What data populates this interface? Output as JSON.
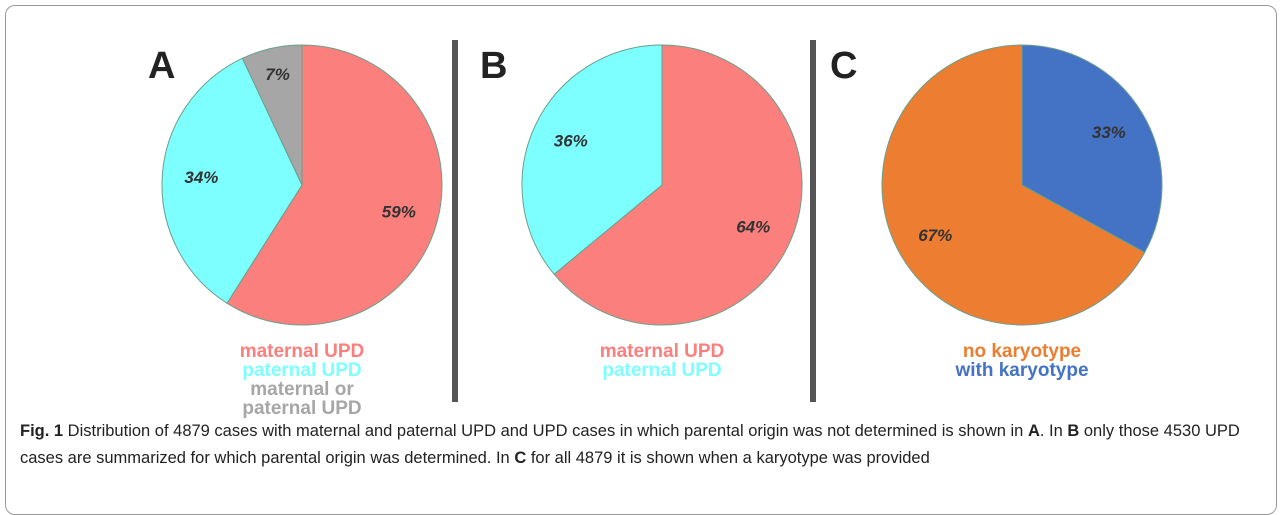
{
  "chart_data": [
    {
      "type": "pie",
      "title": "A",
      "categories": [
        "maternal UPD",
        "paternal UPD",
        "maternal or paternal UPD"
      ],
      "values": [
        59,
        34,
        7
      ],
      "value_labels": [
        "59%",
        "34%",
        "7%"
      ],
      "colors": [
        "#fb7f7d",
        "#7effff",
        "#a6a6a6"
      ],
      "direction": "clockwise"
    },
    {
      "type": "pie",
      "title": "B",
      "categories": [
        "maternal UPD",
        "paternal UPD"
      ],
      "values": [
        64,
        36
      ],
      "value_labels": [
        "64%",
        "36%"
      ],
      "colors": [
        "#fb7f7d",
        "#7effff"
      ],
      "direction": "clockwise"
    },
    {
      "type": "pie",
      "title": "C",
      "categories": [
        "no karyotype",
        "with karyotype"
      ],
      "values": [
        67,
        33
      ],
      "value_labels": [
        "67%",
        "33%"
      ],
      "colors": [
        "#ed7d31",
        "#4472c4"
      ],
      "direction": "counterclockwise"
    }
  ],
  "caption": [
    {
      "text": "Fig. 1",
      "bold": true
    },
    {
      "text": "  Distribution of 4879 cases with maternal and paternal UPD and UPD cases in which parental origin was not determined is shown in "
    },
    {
      "text": "A",
      "bold": true
    },
    {
      "text": ". In "
    },
    {
      "text": "B",
      "bold": true
    },
    {
      "text": " only those 4530 UPD cases are summarized for which parental origin was determined. In "
    },
    {
      "text": "C",
      "bold": true
    },
    {
      "text": " for all 4879 it is shown when a karyotype was provided"
    }
  ]
}
